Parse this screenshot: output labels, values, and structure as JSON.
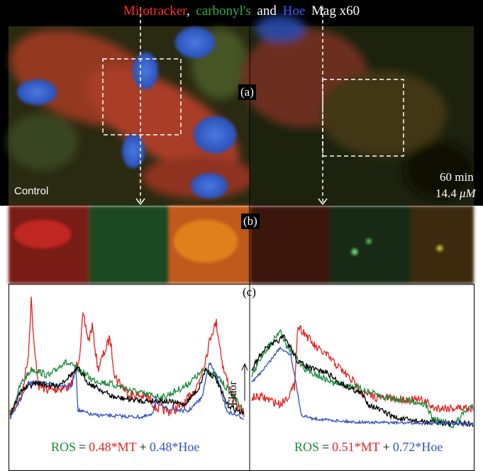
{
  "header": {
    "parts": [
      "Mitotracker",
      ",",
      "carbonyl's",
      "and",
      "Hoe",
      "Mag x60"
    ]
  },
  "panel_labels": {
    "a": "(a)",
    "b": "(b)",
    "c": "(c)"
  },
  "images": {
    "left_label": "Control",
    "right_time": "60 min",
    "right_dose_value": "14.4",
    "right_dose_unit": "μM"
  },
  "axis_label": "Fluor",
  "equations": [
    {
      "lhs": "ROS",
      "eq": "=",
      "term1": "0.48*MT",
      "plus": "+",
      "term2": "0.48*Hoe"
    },
    {
      "lhs": "ROS",
      "eq": "=",
      "term1": "0.51*MT",
      "plus": "+",
      "term2": "0.72*Hoe"
    }
  ]
}
